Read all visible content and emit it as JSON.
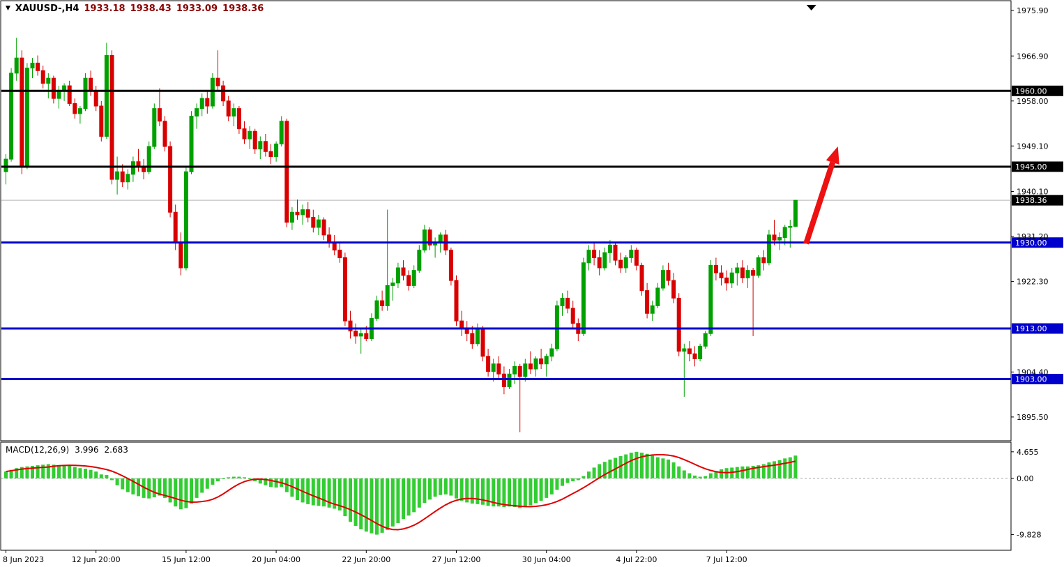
{
  "header": {
    "symbol_period": "XAUUSD-,H4",
    "open": "1933.18",
    "high": "1938.43",
    "low": "1933.09",
    "close": "1938.36"
  },
  "colors": {
    "up": "#00A000",
    "down": "#D80000",
    "macd_bar": "#32CD32",
    "signal": "#E00000",
    "hline_black": "#000000",
    "hline_blue": "#0000CC",
    "arrow": "#EE1111",
    "current_price_line": "#B4B4B4",
    "badge_current": "#000000"
  },
  "chart_data": {
    "type": "candlestick",
    "symbol": "XAUUSD-",
    "timeframe": "H4",
    "title": "XAUUSD- H4 with MACD(12,26,9)",
    "price_axis": [
      {
        "text": "1975.90",
        "price": 1975.9
      },
      {
        "text": "1966.90",
        "price": 1966.9
      },
      {
        "text": "1958.00",
        "price": 1958.0
      },
      {
        "text": "1949.10",
        "price": 1949.1
      },
      {
        "text": "1940.10",
        "price": 1940.1
      },
      {
        "text": "1931.20",
        "price": 1931.2
      },
      {
        "text": "1922.30",
        "price": 1922.3
      },
      {
        "text": "1904.40",
        "price": 1904.4
      },
      {
        "text": "1895.50",
        "price": 1895.5
      }
    ],
    "time_labels": [
      {
        "label": "8 Jun 2023",
        "index": 0
      },
      {
        "label": "12 Jun 20:00",
        "index": 17
      },
      {
        "label": "15 Jun 12:00",
        "index": 34
      },
      {
        "label": "20 Jun 04:00",
        "index": 51
      },
      {
        "label": "22 Jun 20:00",
        "index": 68
      },
      {
        "label": "27 Jun 12:00",
        "index": 85
      },
      {
        "label": "30 Jun 04:00",
        "index": 102
      },
      {
        "label": "4 Jul 22:00",
        "index": 119
      },
      {
        "label": "7 Jul 12:00",
        "index": 136
      }
    ],
    "hlines": [
      {
        "price": 1960.0,
        "label": "1960.00",
        "color": "#000000",
        "width": 3
      },
      {
        "price": 1945.0,
        "label": "1945.00",
        "color": "#000000",
        "width": 3
      },
      {
        "price": 1930.0,
        "label": "1930.00",
        "color": "#0000CC",
        "width": 3
      },
      {
        "price": 1913.0,
        "label": "1913.00",
        "color": "#0000CC",
        "width": 3
      },
      {
        "price": 1903.0,
        "label": "1903.00",
        "color": "#0000CC",
        "width": 3
      }
    ],
    "current_price": {
      "value": 1938.36,
      "label": "1938.36"
    },
    "arrow": {
      "from_index": 151,
      "from_price": 1929.8,
      "to_index": 157,
      "to_price": 1949.0
    },
    "shift_marker_index": 152,
    "candles": [
      [
        1944.0,
        1947.5,
        1941.5,
        1946.5
      ],
      [
        1946.5,
        1964.5,
        1946.0,
        1963.5
      ],
      [
        1963.5,
        1970.5,
        1962.0,
        1966.5
      ],
      [
        1966.5,
        1968.0,
        1943.5,
        1945.0
      ],
      [
        1945.0,
        1965.5,
        1944.5,
        1964.5
      ],
      [
        1964.5,
        1966.5,
        1962.5,
        1965.5
      ],
      [
        1965.5,
        1967.0,
        1963.0,
        1964.0
      ],
      [
        1964.0,
        1965.0,
        1960.5,
        1961.5
      ],
      [
        1961.5,
        1963.5,
        1958.5,
        1962.5
      ],
      [
        1962.5,
        1963.0,
        1957.5,
        1958.5
      ],
      [
        1958.5,
        1961.0,
        1956.5,
        1960.0
      ],
      [
        1960.0,
        1961.5,
        1958.0,
        1961.0
      ],
      [
        1961.0,
        1962.0,
        1957.0,
        1957.5
      ],
      [
        1957.5,
        1958.5,
        1954.5,
        1955.5
      ],
      [
        1955.5,
        1957.0,
        1953.5,
        1956.5
      ],
      [
        1956.5,
        1963.5,
        1956.0,
        1962.5
      ],
      [
        1962.5,
        1964.0,
        1959.0,
        1960.0
      ],
      [
        1960.0,
        1961.0,
        1956.0,
        1957.0
      ],
      [
        1957.0,
        1958.0,
        1950.0,
        1951.0
      ],
      [
        1951.0,
        1969.5,
        1950.5,
        1967.0
      ],
      [
        1967.0,
        1968.0,
        1941.5,
        1942.5
      ],
      [
        1942.5,
        1947.0,
        1939.5,
        1944.0
      ],
      [
        1944.0,
        1945.5,
        1941.0,
        1942.0
      ],
      [
        1942.0,
        1944.5,
        1940.5,
        1943.5
      ],
      [
        1943.5,
        1947.0,
        1942.0,
        1946.0
      ],
      [
        1946.0,
        1948.5,
        1944.0,
        1945.0
      ],
      [
        1945.0,
        1946.5,
        1942.5,
        1944.0
      ],
      [
        1944.0,
        1950.0,
        1943.5,
        1949.0
      ],
      [
        1949.0,
        1957.5,
        1948.5,
        1956.5
      ],
      [
        1956.5,
        1960.5,
        1953.0,
        1954.0
      ],
      [
        1954.0,
        1955.0,
        1948.0,
        1949.0
      ],
      [
        1949.0,
        1950.0,
        1935.0,
        1936.0
      ],
      [
        1936.0,
        1937.5,
        1928.5,
        1930.0
      ],
      [
        1930.0,
        1932.0,
        1923.5,
        1925.0
      ],
      [
        1925.0,
        1945.0,
        1924.5,
        1944.0
      ],
      [
        1944.0,
        1956.0,
        1943.5,
        1955.0
      ],
      [
        1955.0,
        1957.5,
        1952.5,
        1956.5
      ],
      [
        1956.5,
        1959.5,
        1955.0,
        1958.5
      ],
      [
        1958.5,
        1960.0,
        1955.5,
        1957.0
      ],
      [
        1957.0,
        1963.5,
        1956.5,
        1962.5
      ],
      [
        1962.5,
        1968.0,
        1960.0,
        1961.0
      ],
      [
        1961.0,
        1962.0,
        1957.0,
        1958.0
      ],
      [
        1958.0,
        1959.0,
        1954.0,
        1955.0
      ],
      [
        1955.0,
        1957.5,
        1953.0,
        1956.5
      ],
      [
        1956.5,
        1957.0,
        1951.5,
        1952.5
      ],
      [
        1952.5,
        1954.0,
        1949.5,
        1950.5
      ],
      [
        1950.5,
        1953.0,
        1948.5,
        1952.0
      ],
      [
        1952.0,
        1952.5,
        1947.5,
        1948.5
      ],
      [
        1948.5,
        1951.0,
        1946.5,
        1950.0
      ],
      [
        1950.0,
        1951.5,
        1947.0,
        1948.0
      ],
      [
        1948.0,
        1949.5,
        1945.5,
        1947.0
      ],
      [
        1947.0,
        1950.0,
        1946.0,
        1949.5
      ],
      [
        1949.5,
        1955.0,
        1949.0,
        1954.0
      ],
      [
        1954.0,
        1954.5,
        1933.0,
        1934.0
      ],
      [
        1934.0,
        1937.0,
        1932.5,
        1936.0
      ],
      [
        1936.0,
        1938.5,
        1934.5,
        1935.5
      ],
      [
        1935.5,
        1937.5,
        1933.5,
        1936.5
      ],
      [
        1936.5,
        1938.0,
        1934.0,
        1935.0
      ],
      [
        1935.0,
        1936.5,
        1932.0,
        1933.0
      ],
      [
        1933.0,
        1935.5,
        1931.5,
        1934.5
      ],
      [
        1934.5,
        1935.0,
        1930.5,
        1931.5
      ],
      [
        1931.5,
        1933.0,
        1929.0,
        1930.0
      ],
      [
        1930.0,
        1931.5,
        1927.5,
        1928.5
      ],
      [
        1928.5,
        1930.0,
        1926.0,
        1927.0
      ],
      [
        1927.0,
        1928.0,
        1913.5,
        1914.5
      ],
      [
        1914.5,
        1916.5,
        1911.0,
        1912.5
      ],
      [
        1912.5,
        1914.0,
        1910.0,
        1911.5
      ],
      [
        1911.5,
        1913.0,
        1908.0,
        1912.0
      ],
      [
        1912.0,
        1913.5,
        1910.5,
        1911.0
      ],
      [
        1911.0,
        1916.0,
        1910.5,
        1915.0
      ],
      [
        1915.0,
        1919.5,
        1914.5,
        1918.5
      ],
      [
        1918.5,
        1920.5,
        1916.5,
        1917.5
      ],
      [
        1917.5,
        1936.5,
        1916.5,
        1921.5
      ],
      [
        1921.5,
        1923.0,
        1918.5,
        1922.0
      ],
      [
        1922.0,
        1926.0,
        1921.0,
        1925.0
      ],
      [
        1925.0,
        1926.5,
        1922.5,
        1923.5
      ],
      [
        1923.5,
        1924.5,
        1920.5,
        1921.5
      ],
      [
        1921.5,
        1925.5,
        1921.0,
        1924.5
      ],
      [
        1924.5,
        1929.5,
        1924.0,
        1928.5
      ],
      [
        1928.5,
        1933.5,
        1928.0,
        1932.5
      ],
      [
        1932.5,
        1933.0,
        1928.5,
        1929.5
      ],
      [
        1929.5,
        1931.0,
        1927.0,
        1930.0
      ],
      [
        1930.0,
        1932.0,
        1928.0,
        1931.5
      ],
      [
        1931.5,
        1932.5,
        1927.5,
        1928.5
      ],
      [
        1928.5,
        1929.0,
        1921.5,
        1922.5
      ],
      [
        1922.5,
        1923.5,
        1913.5,
        1914.5
      ],
      [
        1914.5,
        1916.5,
        1911.5,
        1913.0
      ],
      [
        1913.0,
        1914.5,
        1910.5,
        1912.0
      ],
      [
        1912.0,
        1913.5,
        1909.0,
        1910.0
      ],
      [
        1910.0,
        1914.0,
        1909.5,
        1913.0
      ],
      [
        1913.0,
        1913.5,
        1906.5,
        1907.5
      ],
      [
        1907.5,
        1909.0,
        1903.5,
        1904.5
      ],
      [
        1904.5,
        1907.0,
        1902.5,
        1906.0
      ],
      [
        1906.0,
        1907.5,
        1903.0,
        1904.0
      ],
      [
        1904.0,
        1905.5,
        1900.0,
        1901.5
      ],
      [
        1901.5,
        1905.0,
        1901.0,
        1904.0
      ],
      [
        1904.0,
        1906.5,
        1902.0,
        1905.5
      ],
      [
        1905.5,
        1906.0,
        1892.5,
        1903.5
      ],
      [
        1903.5,
        1907.0,
        1902.5,
        1906.0
      ],
      [
        1906.0,
        1908.5,
        1904.0,
        1905.0
      ],
      [
        1905.0,
        1907.5,
        1903.5,
        1907.0
      ],
      [
        1907.0,
        1909.0,
        1905.0,
        1906.0
      ],
      [
        1906.0,
        1908.0,
        1903.5,
        1907.5
      ],
      [
        1907.5,
        1910.0,
        1906.5,
        1909.0
      ],
      [
        1909.0,
        1918.5,
        1908.5,
        1917.5
      ],
      [
        1917.5,
        1920.0,
        1915.5,
        1919.0
      ],
      [
        1919.0,
        1920.5,
        1916.0,
        1917.0
      ],
      [
        1917.0,
        1918.5,
        1913.0,
        1914.0
      ],
      [
        1914.0,
        1915.0,
        1910.5,
        1912.0
      ],
      [
        1912.0,
        1927.0,
        1911.5,
        1926.0
      ],
      [
        1926.0,
        1929.5,
        1924.5,
        1928.5
      ],
      [
        1928.5,
        1930.0,
        1925.5,
        1927.0
      ],
      [
        1927.0,
        1928.5,
        1923.5,
        1925.0
      ],
      [
        1925.0,
        1929.0,
        1924.5,
        1928.0
      ],
      [
        1928.0,
        1930.5,
        1926.0,
        1929.5
      ],
      [
        1929.5,
        1930.0,
        1925.5,
        1926.5
      ],
      [
        1926.5,
        1928.0,
        1924.0,
        1925.0
      ],
      [
        1925.0,
        1927.5,
        1924.0,
        1927.0
      ],
      [
        1927.0,
        1929.5,
        1926.0,
        1928.5
      ],
      [
        1928.5,
        1929.0,
        1924.5,
        1925.5
      ],
      [
        1925.5,
        1926.0,
        1919.5,
        1920.5
      ],
      [
        1920.5,
        1922.0,
        1915.0,
        1916.0
      ],
      [
        1916.0,
        1918.5,
        1914.5,
        1917.5
      ],
      [
        1917.5,
        1922.0,
        1917.0,
        1921.0
      ],
      [
        1921.0,
        1925.5,
        1920.5,
        1924.5
      ],
      [
        1924.5,
        1926.0,
        1921.5,
        1922.5
      ],
      [
        1922.5,
        1924.0,
        1918.0,
        1919.0
      ],
      [
        1919.0,
        1920.0,
        1907.5,
        1908.5
      ],
      [
        1908.5,
        1910.0,
        1899.5,
        1909.0
      ],
      [
        1909.0,
        1910.5,
        1906.5,
        1908.0
      ],
      [
        1908.0,
        1909.5,
        1905.5,
        1907.0
      ],
      [
        1907.0,
        1910.0,
        1906.5,
        1909.5
      ],
      [
        1909.5,
        1912.5,
        1909.0,
        1912.0
      ],
      [
        1912.0,
        1926.5,
        1911.5,
        1925.5
      ],
      [
        1925.5,
        1927.0,
        1922.5,
        1924.0
      ],
      [
        1924.0,
        1925.5,
        1921.5,
        1923.0
      ],
      [
        1923.0,
        1924.5,
        1920.5,
        1922.0
      ],
      [
        1922.0,
        1925.0,
        1921.0,
        1924.0
      ],
      [
        1924.0,
        1926.0,
        1921.5,
        1925.0
      ],
      [
        1925.0,
        1926.5,
        1922.0,
        1923.0
      ],
      [
        1923.0,
        1925.5,
        1921.0,
        1924.5
      ],
      [
        1924.5,
        1925.0,
        1911.5,
        1923.5
      ],
      [
        1923.5,
        1927.5,
        1923.0,
        1927.0
      ],
      [
        1927.0,
        1928.5,
        1924.5,
        1926.0
      ],
      [
        1926.0,
        1932.5,
        1925.5,
        1931.5
      ],
      [
        1931.5,
        1934.5,
        1929.5,
        1930.5
      ],
      [
        1930.5,
        1932.0,
        1928.5,
        1931.0
      ],
      [
        1931.0,
        1933.5,
        1929.5,
        1933.0
      ],
      [
        1933.0,
        1934.5,
        1929.0,
        1933.2
      ],
      [
        1933.18,
        1938.43,
        1933.09,
        1938.36
      ]
    ],
    "macd": {
      "label": "MACD(12,26,9)",
      "main": "3.996",
      "signal": "2.683",
      "axis": [
        {
          "text": "4.655",
          "value": 4.655
        },
        {
          "text": "0.00",
          "value": 0
        },
        {
          "text": "-9.828",
          "value": -9.828
        }
      ],
      "values": [
        1.2,
        1.5,
        1.8,
        2.0,
        2.1,
        2.2,
        2.3,
        2.4,
        2.5,
        2.4,
        2.3,
        2.3,
        2.2,
        2.0,
        1.8,
        1.7,
        1.5,
        1.2,
        0.7,
        0.6,
        -0.3,
        -1.2,
        -1.9,
        -2.4,
        -2.8,
        -3.1,
        -3.4,
        -3.5,
        -3.3,
        -3.0,
        -3.4,
        -4.2,
        -4.9,
        -5.4,
        -5.2,
        -4.4,
        -3.4,
        -2.5,
        -1.8,
        -1.1,
        -0.5,
        -0.1,
        0.2,
        0.3,
        0.3,
        0.2,
        -0.1,
        -0.5,
        -0.9,
        -1.2,
        -1.5,
        -1.6,
        -1.5,
        -2.4,
        -3.2,
        -3.8,
        -4.2,
        -4.5,
        -4.7,
        -4.8,
        -4.9,
        -5.1,
        -5.3,
        -5.6,
        -6.6,
        -7.6,
        -8.3,
        -8.9,
        -9.3,
        -9.6,
        -9.828,
        -9.5,
        -9.0,
        -8.4,
        -7.8,
        -7.1,
        -6.5,
        -5.9,
        -5.1,
        -4.3,
        -3.7,
        -3.2,
        -2.9,
        -2.8,
        -3.0,
        -3.5,
        -3.9,
        -4.2,
        -4.4,
        -4.5,
        -4.6,
        -4.8,
        -4.9,
        -4.9,
        -5.0,
        -4.9,
        -5.0,
        -5.2,
        -5.0,
        -4.7,
        -4.3,
        -3.9,
        -3.4,
        -2.8,
        -2.0,
        -1.3,
        -0.8,
        -0.5,
        -0.3,
        0.4,
        1.2,
        1.9,
        2.5,
        2.9,
        3.3,
        3.6,
        3.9,
        4.2,
        4.5,
        4.655,
        4.5,
        4.3,
        4.0,
        3.7,
        3.5,
        3.3,
        2.8,
        2.1,
        1.4,
        0.9,
        0.5,
        0.3,
        0.4,
        0.9,
        1.3,
        1.6,
        1.8,
        1.9,
        2.0,
        2.1,
        2.1,
        2.2,
        2.3,
        2.5,
        2.8,
        3.0,
        3.2,
        3.5,
        3.7,
        3.996
      ]
    }
  }
}
